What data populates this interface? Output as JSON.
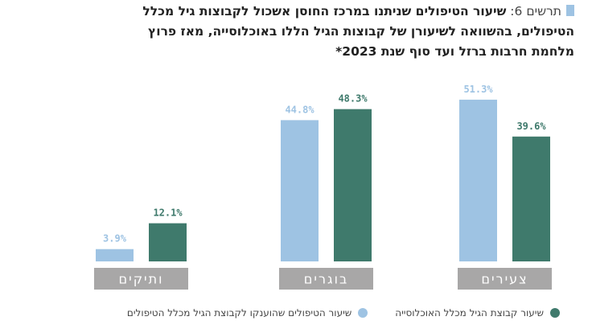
{
  "title": {
    "prefix": "תרשים 6:",
    "lines": [
      "שיעור הטיפולים שניתנו במרכז החוסן אשכול לקבוצות גיל מכלל",
      "הטיפולים, בהשוואה לשיעורן של קבוצות הגיל הללו באוכלוסייה, מאז פרוץ",
      "מלחמת חרבות ברזל ועד סוף שנת 2023*"
    ]
  },
  "colors": {
    "series_light": "#9ec3e3",
    "series_dark": "#3f7a6c",
    "category_band": "#a8a7a7",
    "title_marker": "#9ec3e3"
  },
  "chart_data": {
    "type": "bar",
    "categories": [
      "צעירים",
      "בוגרים",
      "ותיקים"
    ],
    "series": [
      {
        "name": "שיעור הטיפולים שהוענקו לקבוצת הגיל מכלל הטיפולים",
        "values": [
          51.3,
          44.8,
          3.9
        ]
      },
      {
        "name": "שיעור קבוצת הגיל מכלל האוכלוסייה",
        "values": [
          39.6,
          48.3,
          12.1
        ]
      }
    ],
    "value_labels": [
      [
        "51.3%",
        "44.8%",
        "3.9%"
      ],
      [
        "39.6%",
        "48.3%",
        "12.1%"
      ]
    ],
    "ylim": [
      0,
      60
    ],
    "grid": false,
    "legend_position": "bottom"
  }
}
